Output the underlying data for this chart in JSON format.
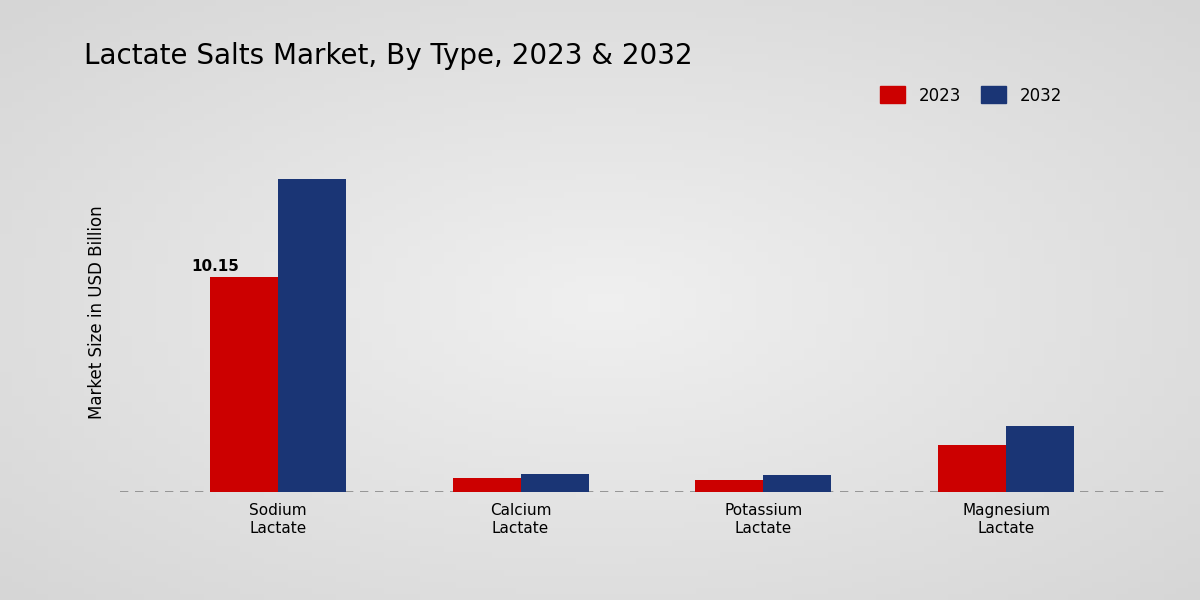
{
  "title": "Lactate Salts Market, By Type, 2023 & 2032",
  "ylabel": "Market Size in USD Billion",
  "categories": [
    "Sodium\nLactate",
    "Calcium\nLactate",
    "Potassium\nLactate",
    "Magnesium\nLactate"
  ],
  "values_2023": [
    10.15,
    0.65,
    0.55,
    2.2
  ],
  "values_2032": [
    14.8,
    0.85,
    0.8,
    3.1
  ],
  "color_2023": "#cc0000",
  "color_2032": "#1a3575",
  "legend_labels": [
    "2023",
    "2032"
  ],
  "bar_annotation": "10.15",
  "bg_color_edge": "#d8d8d8",
  "bg_color_center": "#f0f0f0",
  "title_fontsize": 20,
  "axis_label_fontsize": 12,
  "tick_fontsize": 11,
  "legend_fontsize": 12,
  "bar_width": 0.28,
  "ylim": [
    0,
    17
  ]
}
